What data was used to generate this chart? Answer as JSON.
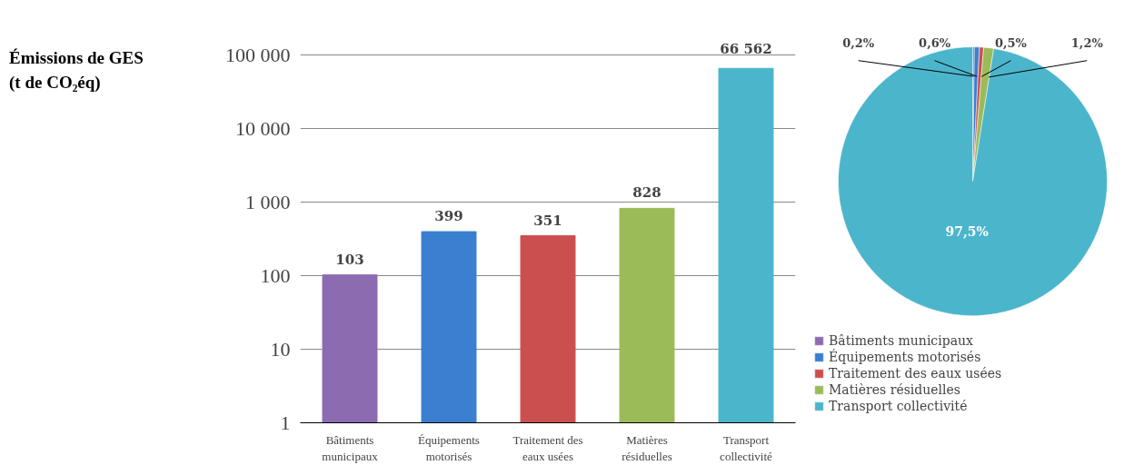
{
  "chart_data": [
    {
      "type": "bar",
      "ylabel": "Émissions de GES (t de CO₂éq)",
      "categories": [
        "Bâtiments municipaux",
        "Équipements motorisés",
        "Traitement des eaux usées",
        "Matières résiduelles",
        "Transport collectivité"
      ],
      "values": [
        103,
        399,
        351,
        828,
        66562
      ],
      "colors": [
        "#8c6bb1",
        "#3a7fd0",
        "#cc4f4f",
        "#9bbb59",
        "#4bb5cc"
      ],
      "value_labels": [
        "103",
        "399",
        "351",
        "828",
        "66 562"
      ],
      "log": true,
      "ylim": [
        1,
        100000
      ],
      "yticks": [
        1,
        10,
        100,
        {
          "value": 1000,
          "label": "1 000"
        },
        {
          "value": 10000,
          "label": "10 000"
        },
        {
          "value": 100000,
          "label": "100 000"
        }
      ],
      "grid": "y"
    },
    {
      "type": "pie",
      "categories": [
        "Bâtiments municipaux",
        "Équipements motorisés",
        "Traitement des eaux usées",
        "Matières résiduelles",
        "Transport collectivité"
      ],
      "values": [
        0.2,
        0.6,
        0.5,
        1.2,
        97.5
      ],
      "colors": [
        "#8c6bb1",
        "#3a7fd0",
        "#cc4f4f",
        "#9bbb59",
        "#4bb5cc"
      ],
      "value_labels": [
        "0,2%",
        "0,6%",
        "0,5%",
        "1,2%",
        "97,5%"
      ],
      "legend": "bottom"
    }
  ]
}
